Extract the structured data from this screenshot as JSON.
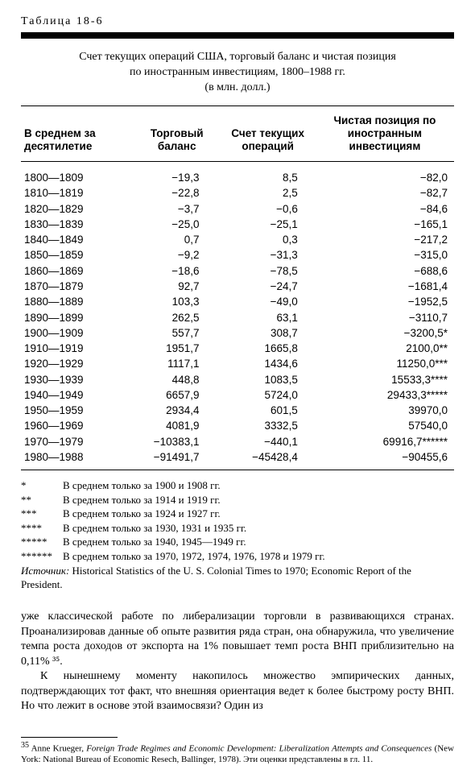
{
  "tableLabel": "Таблица 18-6",
  "title": {
    "line1": "Счет текущих операций США, торговый баланс и чистая позиция",
    "line2": "по иностранным инвестициям, 1800–1988 гг.",
    "line3": "(в млн. долл.)"
  },
  "headers": {
    "period": "В среднем за десятилетие",
    "trade": "Торговый баланс",
    "current": "Счет текущих операций",
    "net": "Чистая позиция по иностранным инвестициям"
  },
  "rows": [
    {
      "period": "1800—1809",
      "trade": "−19,3",
      "current": "8,5",
      "net": "−82,0"
    },
    {
      "period": "1810—1819",
      "trade": "−22,8",
      "current": "2,5",
      "net": "−82,7"
    },
    {
      "period": "1820—1829",
      "trade": "−3,7",
      "current": "−0,6",
      "net": "−84,6"
    },
    {
      "period": "1830—1839",
      "trade": "−25,0",
      "current": "−25,1",
      "net": "−165,1"
    },
    {
      "period": "1840—1849",
      "trade": "0,7",
      "current": "0,3",
      "net": "−217,2"
    },
    {
      "period": "1850—1859",
      "trade": "−9,2",
      "current": "−31,3",
      "net": "−315,0"
    },
    {
      "period": "1860—1869",
      "trade": "−18,6",
      "current": "−78,5",
      "net": "−688,6"
    },
    {
      "period": "1870—1879",
      "trade": "92,7",
      "current": "−24,7",
      "net": "−1681,4"
    },
    {
      "period": "1880—1889",
      "trade": "103,3",
      "current": "−49,0",
      "net": "−1952,5"
    },
    {
      "period": "1890—1899",
      "trade": "262,5",
      "current": "63,1",
      "net": "−3110,7"
    },
    {
      "period": "1900—1909",
      "trade": "557,7",
      "current": "308,7",
      "net": "−3200,5*"
    },
    {
      "period": "1910—1919",
      "trade": "1951,7",
      "current": "1665,8",
      "net": "2100,0**"
    },
    {
      "period": "1920—1929",
      "trade": "1117,1",
      "current": "1434,6",
      "net": "11250,0***"
    },
    {
      "period": "1930—1939",
      "trade": "448,8",
      "current": "1083,5",
      "net": "15533,3****"
    },
    {
      "period": "1940—1949",
      "trade": "6657,9",
      "current": "5724,0",
      "net": "29433,3*****"
    },
    {
      "period": "1950—1959",
      "trade": "2934,4",
      "current": "601,5",
      "net": "39970,0"
    },
    {
      "period": "1960—1969",
      "trade": "4081,9",
      "current": "3332,5",
      "net": "57540,0"
    },
    {
      "period": "1970—1979",
      "trade": "−10383,1",
      "current": "−440,1",
      "net": "69916,7******"
    },
    {
      "period": "1980—1988",
      "trade": "−91491,7",
      "current": "−45428,4",
      "net": "−90455,6"
    }
  ],
  "footnotes": [
    {
      "mark": "*",
      "text": "В среднем только за 1900 и 1908 гг."
    },
    {
      "mark": "**",
      "text": "В среднем только за 1914 и 1919 гг."
    },
    {
      "mark": "***",
      "text": "В среднем только за 1924 и 1927 гг."
    },
    {
      "mark": "****",
      "text": "В среднем только за 1930, 1931 и 1935 гг."
    },
    {
      "mark": "*****",
      "text": "В среднем только за 1940, 1945—1949 гг."
    },
    {
      "mark": "******",
      "text": "В среднем только за 1970, 1972, 1974, 1976, 1978 и 1979 гг."
    }
  ],
  "source": {
    "label": "Источник:",
    "text": " Historical Statistics of the U. S. Colonial Times to 1970; Economic Report of the President."
  },
  "paragraphs": {
    "p1": "уже классической работе по либерализации торговли в развивающихся странах. Проанализировав данные об опыте развития ряда стран, она обнаружила, что увеличение темпа роста доходов от экспорта на 1% повышает темп роста ВНП приблизительно на 0,11% ³⁵.",
    "p2": "К нынешнему моменту накопилось множество эмпирических данных, подтверждающих тот факт, что внешняя ориентация ведет к более быстрому росту ВНП. Но что лежит в основе этой взаимосвязи? Один из"
  },
  "endnote": {
    "num": "35",
    "author": " Anne Krueger, ",
    "titleItalic": "Foreign Trade Regimes and Economic Development: Liberalization Attempts and Consequences",
    "rest": " (New York: National Bureau of Economic Resech, Ballinger, 1978). Эти оценки представлены в гл. 11."
  }
}
